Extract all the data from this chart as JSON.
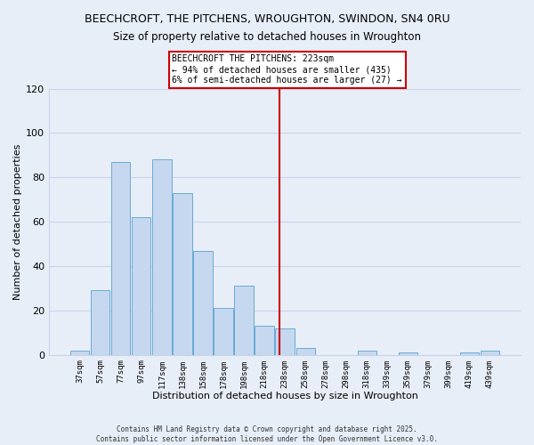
{
  "title": "BEECHCROFT, THE PITCHENS, WROUGHTON, SWINDON, SN4 0RU",
  "subtitle": "Size of property relative to detached houses in Wroughton",
  "xlabel": "Distribution of detached houses by size in Wroughton",
  "ylabel": "Number of detached properties",
  "bar_labels": [
    "37sqm",
    "57sqm",
    "77sqm",
    "97sqm",
    "117sqm",
    "138sqm",
    "158sqm",
    "178sqm",
    "198sqm",
    "218sqm",
    "238sqm",
    "258sqm",
    "278sqm",
    "298sqm",
    "318sqm",
    "339sqm",
    "359sqm",
    "379sqm",
    "399sqm",
    "419sqm",
    "439sqm"
  ],
  "bar_values": [
    2,
    29,
    87,
    62,
    88,
    73,
    47,
    21,
    31,
    13,
    12,
    3,
    0,
    0,
    2,
    0,
    1,
    0,
    0,
    1,
    2
  ],
  "bar_color": "#c5d8f0",
  "bar_edge_color": "#6aaad4",
  "ylim": [
    0,
    120
  ],
  "yticks": [
    0,
    20,
    40,
    60,
    80,
    100,
    120
  ],
  "vline_x_index": 9.75,
  "vline_color": "#cc0000",
  "annotation_line1": "BEECHCROFT THE PITCHENS: 223sqm",
  "annotation_line2": "← 94% of detached houses are smaller (435)",
  "annotation_line3": "6% of semi-detached houses are larger (27) →",
  "background_color": "#e8eef8",
  "grid_color": "#c8d4e8",
  "footer_line1": "Contains HM Land Registry data © Crown copyright and database right 2025.",
  "footer_line2": "Contains public sector information licensed under the Open Government Licence v3.0."
}
